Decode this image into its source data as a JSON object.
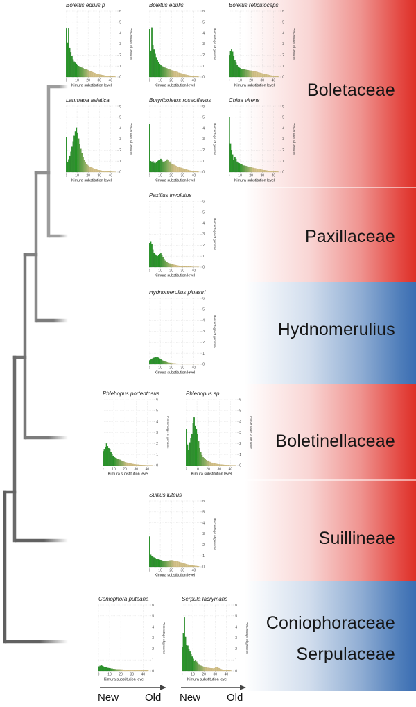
{
  "bands": [
    {
      "style": "red",
      "labels": [
        "Boletaceae",
        "Paxillaceae"
      ]
    },
    {
      "style": "blue",
      "labels": [
        "Hydnomerulius"
      ]
    },
    {
      "style": "red",
      "labels": [
        "Boletinellaceae",
        "Suillineae"
      ]
    },
    {
      "style": "blue",
      "labels": [
        "Coniophoraceae",
        "Serpulaceae"
      ]
    }
  ],
  "colors": {
    "band_red": "#dd2f27",
    "band_blue": "#3a6db2",
    "bar_green": "#289628",
    "bar_tan": "#d6c48c",
    "tree_gray": "#808080"
  },
  "timeline": {
    "left": "New",
    "right": "Old"
  },
  "axis": {
    "x_label": "Kimura substitution level",
    "y_label": "Percentage of genome",
    "x_ticks": [
      0,
      10,
      20,
      30,
      40
    ],
    "y_ticks": [
      0,
      1,
      2,
      3,
      4,
      5,
      6
    ],
    "ylim": [
      0,
      6
    ]
  },
  "chart_data": [
    {
      "type": "bar",
      "title": "Boletus edulis p",
      "xlabel": "Kimura substitution level",
      "ylabel": "Percentage of genome",
      "ylim": [
        0,
        6
      ],
      "values": [
        4.4,
        3.1,
        4.4,
        2.65,
        2.25,
        1.9,
        1.6,
        1.4,
        1.3,
        1.2,
        1.1,
        1.0,
        0.95,
        0.9,
        0.85,
        0.8,
        0.75,
        0.7,
        0.68,
        0.65,
        0.6,
        0.55,
        0.5,
        0.45,
        0.42,
        0.38,
        0.35,
        0.3,
        0.28,
        0.25,
        0.22,
        0.2,
        0.18,
        0.16,
        0.14,
        0.12,
        0.1,
        0.09,
        0.08,
        0.07,
        0.06,
        0.05,
        0.05,
        0.04,
        0.03
      ]
    },
    {
      "type": "bar",
      "title": "Boletus edulis",
      "xlabel": "Kimura substitution level",
      "ylabel": "Percentage of genome",
      "ylim": [
        0,
        6
      ],
      "values": [
        4.35,
        2.4,
        4.5,
        2.9,
        2.5,
        2.1,
        1.8,
        1.55,
        1.35,
        1.2,
        1.1,
        1.0,
        0.95,
        0.9,
        0.85,
        0.8,
        0.78,
        0.75,
        0.7,
        0.65,
        0.6,
        0.58,
        0.55,
        0.5,
        0.48,
        0.45,
        0.4,
        0.38,
        0.35,
        0.3,
        0.28,
        0.25,
        0.22,
        0.2,
        0.18,
        0.15,
        0.13,
        0.11,
        0.1,
        0.08,
        0.07,
        0.06,
        0.05,
        0.04,
        0.03
      ]
    },
    {
      "type": "bar",
      "title": "Boletus reticuloceps",
      "xlabel": "Kimura substitution level",
      "ylabel": "Percentage of genome",
      "ylim": [
        0,
        6
      ],
      "values": [
        2.0,
        2.35,
        2.55,
        2.3,
        1.9,
        1.55,
        1.3,
        1.1,
        0.95,
        0.85,
        0.8,
        0.75,
        0.72,
        0.7,
        0.68,
        0.65,
        0.63,
        0.62,
        0.6,
        0.58,
        0.57,
        0.55,
        0.53,
        0.5,
        0.48,
        0.45,
        0.42,
        0.4,
        0.38,
        0.35,
        0.32,
        0.3,
        0.28,
        0.25,
        0.22,
        0.2,
        0.18,
        0.15,
        0.13,
        0.11,
        0.09,
        0.08,
        0.06,
        0.05,
        0.04
      ]
    },
    {
      "type": "bar",
      "title": "Lanmaoa asiatica",
      "xlabel": "Kimura substitution level",
      "ylabel": "Percentage of genome",
      "ylim": [
        0,
        6
      ],
      "values": [
        3.2,
        0.9,
        1.15,
        1.45,
        1.85,
        2.3,
        2.8,
        3.3,
        3.7,
        4.05,
        3.6,
        3.05,
        2.55,
        2.1,
        1.7,
        1.35,
        1.1,
        0.9,
        0.75,
        0.65,
        0.55,
        0.5,
        0.45,
        0.4,
        0.35,
        0.3,
        0.27,
        0.24,
        0.21,
        0.18,
        0.16,
        0.14,
        0.12,
        0.1,
        0.09,
        0.08,
        0.07,
        0.06,
        0.05,
        0.04,
        0.04,
        0.03,
        0.03,
        0.02,
        0.02
      ]
    },
    {
      "type": "bar",
      "title": "Butyriboletus roseoflavus",
      "xlabel": "Kimura substitution level",
      "ylabel": "Percentage of genome",
      "ylim": [
        0,
        6
      ],
      "values": [
        4.35,
        1.0,
        0.9,
        1.0,
        0.85,
        0.8,
        0.9,
        1.0,
        1.05,
        1.1,
        1.2,
        1.05,
        0.95,
        0.9,
        1.0,
        1.1,
        1.15,
        1.05,
        0.95,
        0.85,
        0.75,
        0.7,
        0.65,
        0.6,
        0.55,
        0.5,
        0.45,
        0.42,
        0.4,
        0.36,
        0.33,
        0.3,
        0.27,
        0.24,
        0.21,
        0.18,
        0.15,
        0.13,
        0.11,
        0.09,
        0.08,
        0.06,
        0.05,
        0.04,
        0.03
      ]
    },
    {
      "type": "bar",
      "title": "Chiua virens",
      "xlabel": "Kimura substitution level",
      "ylabel": "Percentage of genome",
      "ylim": [
        0,
        6
      ],
      "values": [
        5.0,
        2.6,
        2.0,
        1.6,
        1.1,
        1.35,
        1.2,
        0.95,
        0.85,
        0.8,
        0.75,
        0.7,
        0.65,
        0.6,
        0.58,
        0.55,
        0.52,
        0.5,
        0.47,
        0.45,
        0.42,
        0.4,
        0.38,
        0.35,
        0.33,
        0.3,
        0.28,
        0.26,
        0.24,
        0.22,
        0.2,
        0.18,
        0.17,
        0.15,
        0.14,
        0.12,
        0.11,
        0.1,
        0.09,
        0.08,
        0.07,
        0.06,
        0.05,
        0.04,
        0.03
      ]
    },
    {
      "type": "bar",
      "title": "Paxillus involutus",
      "xlabel": "Kimura substitution level",
      "ylabel": "Percentage of genome",
      "ylim": [
        0,
        6
      ],
      "values": [
        2.2,
        2.3,
        2.1,
        1.6,
        1.3,
        1.15,
        1.05,
        1.0,
        1.1,
        1.2,
        1.25,
        1.1,
        0.9,
        0.7,
        0.58,
        0.48,
        0.42,
        0.38,
        0.34,
        0.3,
        0.27,
        0.24,
        0.21,
        0.19,
        0.17,
        0.15,
        0.13,
        0.12,
        0.1,
        0.09,
        0.08,
        0.07,
        0.06,
        0.06,
        0.05,
        0.05,
        0.04,
        0.04,
        0.03,
        0.03,
        0.02,
        0.02,
        0.02,
        0.01,
        0.01
      ]
    },
    {
      "type": "bar",
      "title": "Hydnomerulius pinastri",
      "xlabel": "Kimura substitution level",
      "ylabel": "Percentage of genome",
      "ylim": [
        0,
        6
      ],
      "values": [
        0.35,
        0.42,
        0.5,
        0.56,
        0.6,
        0.65,
        0.62,
        0.66,
        0.6,
        0.52,
        0.45,
        0.38,
        0.32,
        0.27,
        0.23,
        0.2,
        0.17,
        0.15,
        0.13,
        0.11,
        0.1,
        0.09,
        0.08,
        0.07,
        0.06,
        0.06,
        0.05,
        0.05,
        0.04,
        0.04,
        0.03,
        0.03,
        0.03,
        0.02,
        0.02,
        0.02,
        0.02,
        0.01,
        0.01,
        0.01,
        0.01,
        0.01,
        0.01,
        0.01,
        0.01
      ]
    },
    {
      "type": "bar",
      "title": "Phlebopus portentosus",
      "xlabel": "Kimura substitution level",
      "ylabel": "Percentage of genome",
      "ylim": [
        0,
        6
      ],
      "values": [
        1.3,
        1.5,
        1.7,
        2.0,
        1.75,
        1.6,
        1.5,
        1.2,
        1.0,
        0.88,
        0.78,
        0.7,
        0.66,
        0.62,
        0.58,
        0.52,
        0.47,
        0.42,
        0.38,
        0.34,
        0.3,
        0.27,
        0.24,
        0.21,
        0.19,
        0.17,
        0.15,
        0.13,
        0.11,
        0.1,
        0.09,
        0.08,
        0.07,
        0.06,
        0.05,
        0.05,
        0.04,
        0.04,
        0.03,
        0.03,
        0.02,
        0.02,
        0.02,
        0.01,
        0.01
      ]
    },
    {
      "type": "bar",
      "title": "Phlebopus sp.",
      "xlabel": "Kimura substitution level",
      "ylabel": "Percentage of genome",
      "ylim": [
        0,
        6
      ],
      "values": [
        3.3,
        1.9,
        1.4,
        2.1,
        2.45,
        2.9,
        3.9,
        4.4,
        3.6,
        3.3,
        2.9,
        2.2,
        1.6,
        1.25,
        0.95,
        0.8,
        0.68,
        0.58,
        0.5,
        0.44,
        0.38,
        0.33,
        0.29,
        0.25,
        0.22,
        0.19,
        0.17,
        0.15,
        0.13,
        0.11,
        0.1,
        0.09,
        0.08,
        0.07,
        0.06,
        0.05,
        0.05,
        0.04,
        0.04,
        0.03,
        0.03,
        0.02,
        0.02,
        0.02,
        0.01
      ]
    },
    {
      "type": "bar",
      "title": "Suillus luteus",
      "xlabel": "Kimura substitution level",
      "ylabel": "Percentage of genome",
      "ylim": [
        0,
        6
      ],
      "values": [
        2.75,
        1.1,
        0.95,
        0.9,
        0.85,
        0.8,
        0.75,
        0.72,
        0.68,
        0.65,
        0.62,
        0.58,
        0.55,
        0.52,
        0.5,
        0.5,
        0.52,
        0.55,
        0.58,
        0.6,
        0.6,
        0.58,
        0.56,
        0.55,
        0.53,
        0.5,
        0.47,
        0.44,
        0.4,
        0.37,
        0.34,
        0.3,
        0.27,
        0.24,
        0.21,
        0.19,
        0.17,
        0.15,
        0.13,
        0.11,
        0.1,
        0.08,
        0.07,
        0.06,
        0.05
      ]
    },
    {
      "type": "bar",
      "title": "Coniophora puteana",
      "xlabel": "Kimura substitution level",
      "ylabel": "Percentage of genome",
      "ylim": [
        0,
        6
      ],
      "values": [
        0.4,
        0.46,
        0.5,
        0.46,
        0.4,
        0.36,
        0.32,
        0.3,
        0.27,
        0.25,
        0.23,
        0.21,
        0.2,
        0.18,
        0.17,
        0.16,
        0.15,
        0.15,
        0.14,
        0.14,
        0.13,
        0.13,
        0.12,
        0.12,
        0.11,
        0.11,
        0.1,
        0.1,
        0.1,
        0.09,
        0.09,
        0.09,
        0.08,
        0.08,
        0.08,
        0.07,
        0.07,
        0.07,
        0.06,
        0.06,
        0.06,
        0.05,
        0.05,
        0.05,
        0.04
      ]
    },
    {
      "type": "bar",
      "title": "Serpula lacrymans",
      "xlabel": "Kimura substitution level",
      "ylabel": "Percentage of genome",
      "ylim": [
        0,
        6
      ],
      "values": [
        2.2,
        3.4,
        4.85,
        3.1,
        2.35,
        2.3,
        2.0,
        1.75,
        1.5,
        1.3,
        1.1,
        0.92,
        1.0,
        0.85,
        0.7,
        0.6,
        0.52,
        0.46,
        0.42,
        0.38,
        0.35,
        0.32,
        0.3,
        0.28,
        0.26,
        0.25,
        0.24,
        0.23,
        0.22,
        0.25,
        0.3,
        0.34,
        0.3,
        0.25,
        0.2,
        0.16,
        0.13,
        0.11,
        0.09,
        0.08,
        0.07,
        0.06,
        0.05,
        0.04,
        0.03
      ]
    }
  ]
}
